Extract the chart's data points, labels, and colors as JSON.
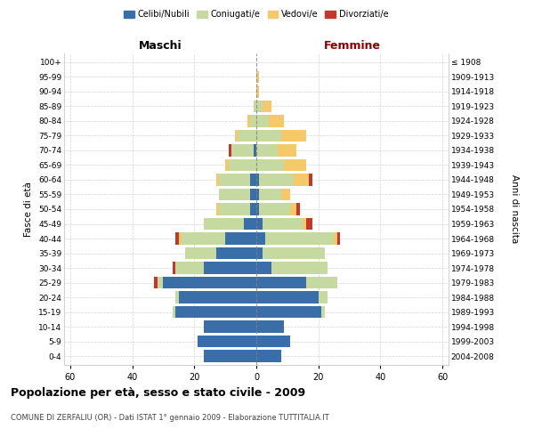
{
  "age_groups": [
    "0-4",
    "5-9",
    "10-14",
    "15-19",
    "20-24",
    "25-29",
    "30-34",
    "35-39",
    "40-44",
    "45-49",
    "50-54",
    "55-59",
    "60-64",
    "65-69",
    "70-74",
    "75-79",
    "80-84",
    "85-89",
    "90-94",
    "95-99",
    "100+"
  ],
  "birth_years": [
    "2004-2008",
    "1999-2003",
    "1994-1998",
    "1989-1993",
    "1984-1988",
    "1979-1983",
    "1974-1978",
    "1969-1973",
    "1964-1968",
    "1959-1963",
    "1954-1958",
    "1949-1953",
    "1944-1948",
    "1939-1943",
    "1934-1938",
    "1929-1933",
    "1924-1928",
    "1919-1923",
    "1914-1918",
    "1909-1913",
    "≤ 1908"
  ],
  "maschi": {
    "celibi": [
      17,
      19,
      17,
      26,
      25,
      30,
      17,
      13,
      10,
      4,
      2,
      2,
      2,
      0,
      1,
      0,
      0,
      0,
      0,
      0,
      0
    ],
    "coniugati": [
      0,
      0,
      0,
      1,
      1,
      2,
      9,
      10,
      14,
      13,
      10,
      10,
      10,
      9,
      7,
      6,
      2,
      1,
      0,
      0,
      0
    ],
    "vedovi": [
      0,
      0,
      0,
      0,
      0,
      0,
      0,
      0,
      1,
      0,
      1,
      0,
      1,
      1,
      0,
      1,
      1,
      0,
      0,
      0,
      0
    ],
    "divorziati": [
      0,
      0,
      0,
      0,
      0,
      1,
      1,
      0,
      1,
      0,
      0,
      0,
      0,
      0,
      1,
      0,
      0,
      0,
      0,
      0,
      0
    ]
  },
  "femmine": {
    "nubili": [
      8,
      11,
      9,
      21,
      20,
      16,
      5,
      2,
      3,
      2,
      1,
      1,
      1,
      0,
      0,
      0,
      0,
      0,
      0,
      0,
      0
    ],
    "coniugate": [
      0,
      0,
      0,
      1,
      3,
      10,
      18,
      20,
      22,
      13,
      10,
      7,
      11,
      9,
      7,
      8,
      4,
      2,
      0,
      0,
      0
    ],
    "vedove": [
      0,
      0,
      0,
      0,
      0,
      0,
      0,
      0,
      1,
      1,
      2,
      3,
      5,
      7,
      6,
      8,
      5,
      3,
      1,
      1,
      0
    ],
    "divorziate": [
      0,
      0,
      0,
      0,
      0,
      0,
      0,
      0,
      1,
      2,
      1,
      0,
      1,
      0,
      0,
      0,
      0,
      0,
      0,
      0,
      0
    ]
  },
  "colors": {
    "celibi": "#3a6ea8",
    "coniugati": "#c5d9a0",
    "vedovi": "#f5c96a",
    "divorziati": "#c0392b"
  },
  "xlim": 62,
  "title": "Popolazione per età, sesso e stato civile - 2009",
  "subtitle": "COMUNE DI ZERFALIU (OR) - Dati ISTAT 1° gennaio 2009 - Elaborazione TUTTITALIA.IT",
  "ylabel_left": "Fasce di età",
  "ylabel_right": "Anni di nascita",
  "xlabel_maschi": "Maschi",
  "xlabel_femmine": "Femmine"
}
